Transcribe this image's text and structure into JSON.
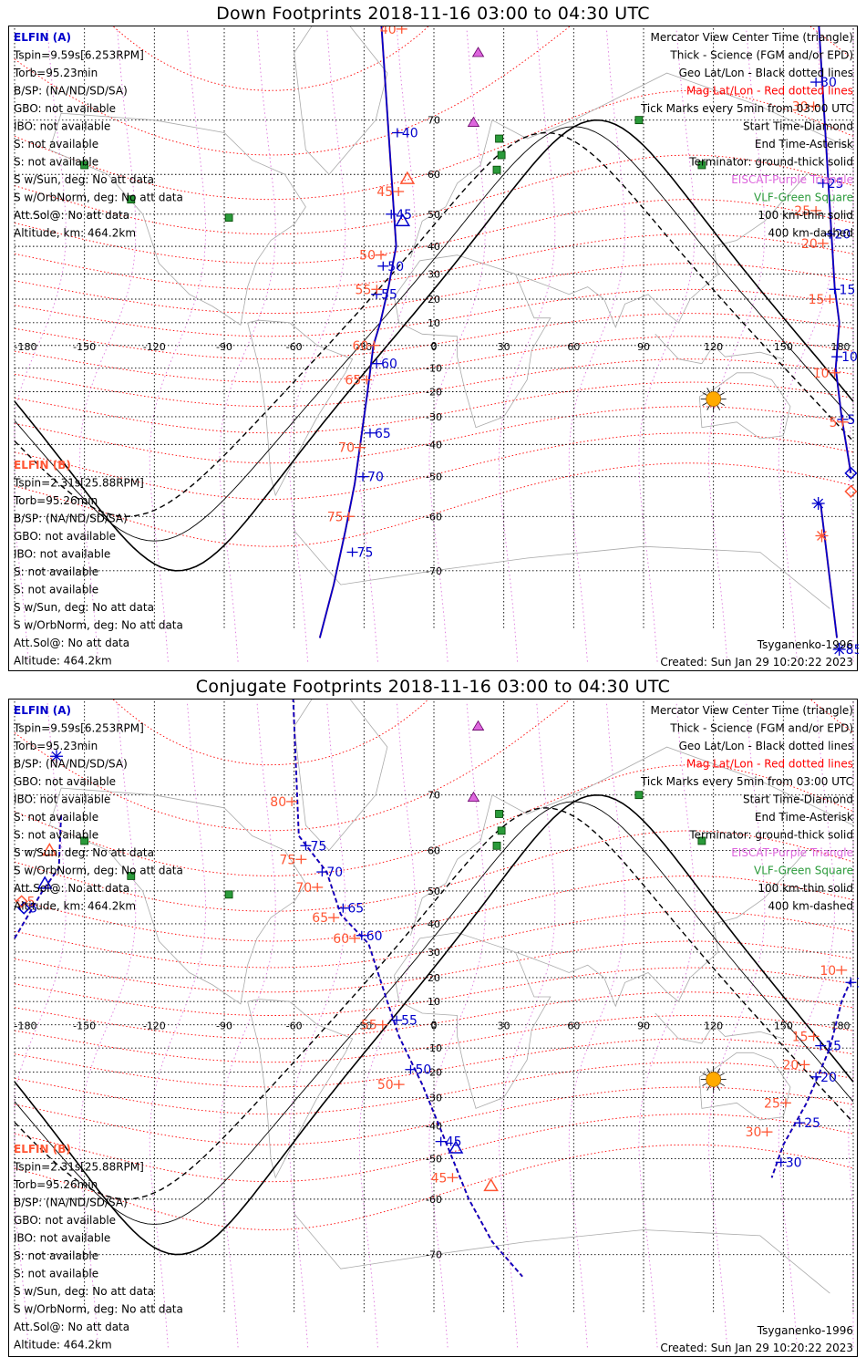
{
  "colors": {
    "elfin_a": "#0000cc",
    "elfin_b": "#ff5533",
    "geo_grid": "#000000",
    "mag_grid": "#ff0000",
    "eiscat": "#dd66dd",
    "vlf": "#2a9a3a",
    "sun": "#ffaa00",
    "coast": "#aaaaaa"
  },
  "panels": [
    {
      "title": "Down Footprints 2018-11-16 03:00 to 04:30 UTC",
      "elfin_a": {
        "name": "ELFIN (A)",
        "lines": [
          "Tspin=9.59s[6.253RPM]",
          "Torb=95.23min",
          "B/SP: (NA/ND/SD/SA)",
          "GBO: not available",
          "IBO: not available",
          "S: not available",
          "S: not available",
          "S w/Sun, deg: No att data",
          "S w/OrbNorm, deg: No att data",
          "Att.Sol@: No att data",
          "Altitude, km: 464.2km"
        ]
      },
      "elfin_b": {
        "name": "ELFIN (B)",
        "lines": [
          "Tspin=2.31s[25.88RPM]",
          "Torb=95.26min",
          "B/SP: (NA/ND/SD/SA)",
          "GBO: not available",
          "IBO: not available",
          "S: not available",
          "S: not available",
          "S w/Sun, deg: No att data",
          "S w/OrbNorm, deg: No att data",
          "Att.Sol@: No att data",
          "Altitude: 464.2km"
        ]
      },
      "legend": [
        "Mercator View Center Time (triangle)",
        "Thick - Science (FGM and/or EPD)",
        "Geo Lat/Lon - Black dotted lines",
        "Mag Lat/Lon - Red dotted lines",
        "Tick Marks every 5min from 03:00 UTC",
        "Start Time-Diamond",
        "End Time-Asterisk",
        "Terminator: ground-thick solid",
        "EISCAT-Purple Triangle",
        "VLF-Green Square",
        "100 km-thin solid",
        "400 km-dashed"
      ],
      "model": "Tsyganenko-1996",
      "created": "Created: Sun Jan 29 10:20:22 2023",
      "track_a": [
        {
          "lon": -25,
          "lat": 89
        },
        {
          "lon": -16.2,
          "lat": 40
        },
        {
          "lon": -19.5,
          "lat": 25
        },
        {
          "lon": -23,
          "lat": 10
        },
        {
          "lon": -26,
          "lat": 0
        },
        {
          "lon": -28.5,
          "lat": -20
        },
        {
          "lon": -31.6,
          "lat": -40
        },
        {
          "lon": -34,
          "lat": -52
        },
        {
          "lon": -38,
          "lat": -63
        },
        {
          "lon": -43,
          "lat": -72
        },
        {
          "lon": -49,
          "lat": -78
        }
      ],
      "ticks_a": [
        {
          "lon": -15.7,
          "lat": 68,
          "label": "40"
        },
        {
          "lon": -18.3,
          "lat": 50,
          "label": "45"
        },
        {
          "lon": -21.8,
          "lat": 33,
          "label": "50"
        },
        {
          "lon": -24.6,
          "lat": 22,
          "label": "55"
        },
        {
          "lon": -24.6,
          "lat": -8,
          "label": "60"
        },
        {
          "lon": -27.4,
          "lat": -36,
          "label": "65"
        },
        {
          "lon": -30.5,
          "lat": -50,
          "label": "70"
        },
        {
          "lon": -35,
          "lat": -67,
          "label": "75"
        }
      ],
      "ticks_b": [
        {
          "lon": -13.8,
          "lat": 80,
          "label": "40"
        },
        {
          "lon": -15.2,
          "lat": 56,
          "label": "45"
        },
        {
          "lon": -22.7,
          "lat": 37,
          "label": "50"
        },
        {
          "lon": -24.5,
          "lat": 24,
          "label": "55"
        },
        {
          "lon": -25.7,
          "lat": 0,
          "label": "60"
        },
        {
          "lon": -28.9,
          "lat": -15,
          "label": "65"
        },
        {
          "lon": -31.7,
          "lat": -41,
          "label": "70"
        },
        {
          "lon": -36.5,
          "lat": -60,
          "label": "75"
        }
      ],
      "track_a2": [
        {
          "lon": 163,
          "lat": 89
        },
        {
          "lon": 172,
          "lat": 25
        },
        {
          "lon": 174,
          "lat": 10
        },
        {
          "lon": 172.5,
          "lat": -10
        },
        {
          "lon": 175,
          "lat": -30
        },
        {
          "lon": 179,
          "lat": -49
        }
      ],
      "ticks_a2": [
        {
          "lon": 164,
          "lat": 75,
          "label": "30"
        },
        {
          "lon": 167,
          "lat": 58,
          "label": "25"
        },
        {
          "lon": 170,
          "lat": 44,
          "label": "20"
        },
        {
          "lon": 172,
          "lat": 24,
          "label": "15"
        },
        {
          "lon": 173,
          "lat": -5,
          "label": "10"
        },
        {
          "lon": 175.5,
          "lat": -31,
          "label": "5"
        }
      ],
      "ticks_b2": [
        {
          "lon": 163,
          "lat": 72,
          "label": "30"
        },
        {
          "lon": 164,
          "lat": 51,
          "label": "25"
        },
        {
          "lon": 167,
          "lat": 41,
          "label": "20"
        },
        {
          "lon": 170,
          "lat": 20,
          "label": "15"
        },
        {
          "lon": 172,
          "lat": -12,
          "label": "10"
        },
        {
          "lon": 175.5,
          "lat": -32,
          "label": "5"
        }
      ],
      "track_a3": [
        {
          "lon": 166,
          "lat": -57
        },
        {
          "lon": 173,
          "lat": -78
        }
      ],
      "end_points": [
        {
          "who": "a",
          "lon": 165,
          "lat": -57
        },
        {
          "who": "b",
          "lon": 166.5,
          "lat": -64
        },
        {
          "who": "a2",
          "lon": 174,
          "lat": -79,
          "label": "85"
        }
      ],
      "start_points": [
        {
          "who": "a",
          "lon": 179,
          "lat": -49
        },
        {
          "who": "b",
          "lon": 179,
          "lat": -54
        }
      ],
      "center_a": {
        "lon": -13.4,
        "lat": 48
      },
      "center_b": {
        "lon": -11.4,
        "lat": 59
      }
    },
    {
      "title": "Conjugate Footprints 2018-11-16 03:00 to 04:30 UTC",
      "elfin_a": {
        "name": "ELFIN (A)",
        "lines": [
          "Tspin=9.59s[6.253RPM]",
          "Torb=95.23min",
          "B/SP: (NA/ND/SD/SA)",
          "GBO: not available",
          "IBO: not available",
          "S: not available",
          "S: not available",
          "S w/Sun, deg: No att data",
          "S w/OrbNorm, deg: No att data",
          "Att.Sol@: No att data",
          "Altitude, km: 464.2km"
        ]
      },
      "elfin_b": {
        "name": "ELFIN (B)",
        "lines": [
          "Tspin=2.31s[25.88RPM]",
          "Torb=95.26min",
          "B/SP: (NA/ND/SD/SA)",
          "GBO: not available",
          "IBO: not available",
          "S: not available",
          "S: not available",
          "S w/Sun, deg: No att data",
          "S w/OrbNorm, deg: No att data",
          "Att.Sol@: No att data",
          "Altitude: 464.2km"
        ]
      },
      "legend": [
        "Mercator View Center Time (triangle)",
        "Thick - Science (FGM and/or EPD)",
        "Geo Lat/Lon - Black dotted lines",
        "Mag Lat/Lon - Red dotted lines",
        "Tick Marks every 5min from 03:00 UTC",
        "Start Time-Diamond",
        "End Time-Asterisk",
        "Terminator: ground-thick solid",
        "EISCAT-Purple Triangle",
        "VLF-Green Square",
        "100 km-thin solid",
        "400 km-dashed"
      ],
      "model": "Tsyganenko-1996",
      "created": "Created: Sun Jan 29 10:20:22 2023",
      "track_a": [
        {
          "lon": -62,
          "lat": 89
        },
        {
          "lon": -58,
          "lat": 63
        },
        {
          "lon": -46,
          "lat": 55
        },
        {
          "lon": -40,
          "lat": 43
        },
        {
          "lon": -28,
          "lat": 33
        },
        {
          "lon": -20,
          "lat": 10
        },
        {
          "lon": -15,
          "lat": -5
        },
        {
          "lon": -5,
          "lat": -25
        },
        {
          "lon": 5,
          "lat": -45
        },
        {
          "lon": 15,
          "lat": -60
        },
        {
          "lon": 25,
          "lat": -68
        },
        {
          "lon": 38,
          "lat": -73
        }
      ],
      "ticks_a": [
        {
          "lon": -55,
          "lat": 61,
          "label": "75"
        },
        {
          "lon": -48,
          "lat": 55,
          "label": "70"
        },
        {
          "lon": -39,
          "lat": 45,
          "label": "65"
        },
        {
          "lon": -31,
          "lat": 36,
          "label": "60"
        },
        {
          "lon": -16,
          "lat": 2,
          "label": "55"
        },
        {
          "lon": -10,
          "lat": -19,
          "label": "50"
        },
        {
          "lon": 3,
          "lat": -45,
          "label": "45"
        }
      ],
      "ticks_b": [
        {
          "lon": -61,
          "lat": 69,
          "label": "80"
        },
        {
          "lon": -57,
          "lat": 58,
          "label": "75"
        },
        {
          "lon": -50,
          "lat": 51,
          "label": "70"
        },
        {
          "lon": -43,
          "lat": 42,
          "label": "65"
        },
        {
          "lon": -34,
          "lat": 35,
          "label": "60"
        },
        {
          "lon": -22,
          "lat": 0,
          "label": "55"
        },
        {
          "lon": -15,
          "lat": -25,
          "label": "50"
        },
        {
          "lon": 8,
          "lat": -55,
          "label": "45"
        }
      ],
      "track_a2": [
        {
          "lon": 179,
          "lat": 19
        },
        {
          "lon": 175,
          "lat": 10
        },
        {
          "lon": 170,
          "lat": -10
        },
        {
          "lon": 160,
          "lat": -32
        },
        {
          "lon": 150,
          "lat": -46
        },
        {
          "lon": 145,
          "lat": -55
        }
      ],
      "ticks_a2": [
        {
          "lon": 179,
          "lat": 18,
          "label": "10"
        },
        {
          "lon": 166,
          "lat": -9,
          "label": "15"
        },
        {
          "lon": 164,
          "lat": -22,
          "label": "20"
        },
        {
          "lon": 157,
          "lat": -39,
          "label": "25"
        },
        {
          "lon": 149,
          "lat": -51,
          "label": "30"
        }
      ],
      "ticks_b2": [
        {
          "lon": 175,
          "lat": 23,
          "label": "10"
        },
        {
          "lon": 163,
          "lat": -5,
          "label": "15"
        },
        {
          "lon": 159,
          "lat": -17,
          "label": "20"
        },
        {
          "lon": 151,
          "lat": -32,
          "label": "25"
        },
        {
          "lon": 143,
          "lat": -42,
          "label": "30"
        }
      ],
      "track_a3": [
        {
          "lon": -180,
          "lat": 35
        },
        {
          "lon": -168,
          "lat": 50
        },
        {
          "lon": -161,
          "lat": 56
        },
        {
          "lon": -160,
          "lat": 67
        }
      ],
      "end_points": [
        {
          "who": "a",
          "lon": -162,
          "lat": 75
        }
      ],
      "start_points": [
        {
          "who": "a",
          "lon": -176,
          "lat": 45,
          "label": "5"
        },
        {
          "who": "b",
          "lon": -177,
          "lat": 47,
          "label": "5"
        }
      ],
      "center_a": {
        "lon": 9.4,
        "lat": -47
      },
      "center_b": {
        "lon": 24.5,
        "lat": -57
      },
      "extra_triangles": [
        {
          "who": "a",
          "lon": -167,
          "lat": 52
        },
        {
          "who": "b",
          "lon": -165,
          "lat": 60
        }
      ]
    }
  ],
  "map": {
    "lon_ticks": [
      "-180",
      "-150",
      "-120",
      "-90",
      "-60",
      "-30",
      "0",
      "30",
      "60",
      "90",
      "120",
      "150",
      "180"
    ],
    "lat_ticks": [
      "70",
      "60",
      "50",
      "40",
      "30",
      "20",
      "10",
      "0",
      "-10",
      "-20",
      "-30",
      "-40",
      "-50",
      "-60",
      "-70"
    ],
    "eiscat": [
      {
        "lon": 17,
        "lat": 69.6
      },
      {
        "lon": 19,
        "lat": 78
      }
    ],
    "vlf": [
      {
        "lon": -150,
        "lat": 62
      },
      {
        "lon": -130,
        "lat": 54
      },
      {
        "lon": -88,
        "lat": 49
      },
      {
        "lon": 28,
        "lat": 67
      },
      {
        "lon": 29,
        "lat": 64
      },
      {
        "lon": 27,
        "lat": 61
      },
      {
        "lon": 88,
        "lat": 70
      },
      {
        "lon": 115,
        "lat": 62
      }
    ],
    "sun": {
      "lon": 120,
      "lat": -23
    }
  }
}
